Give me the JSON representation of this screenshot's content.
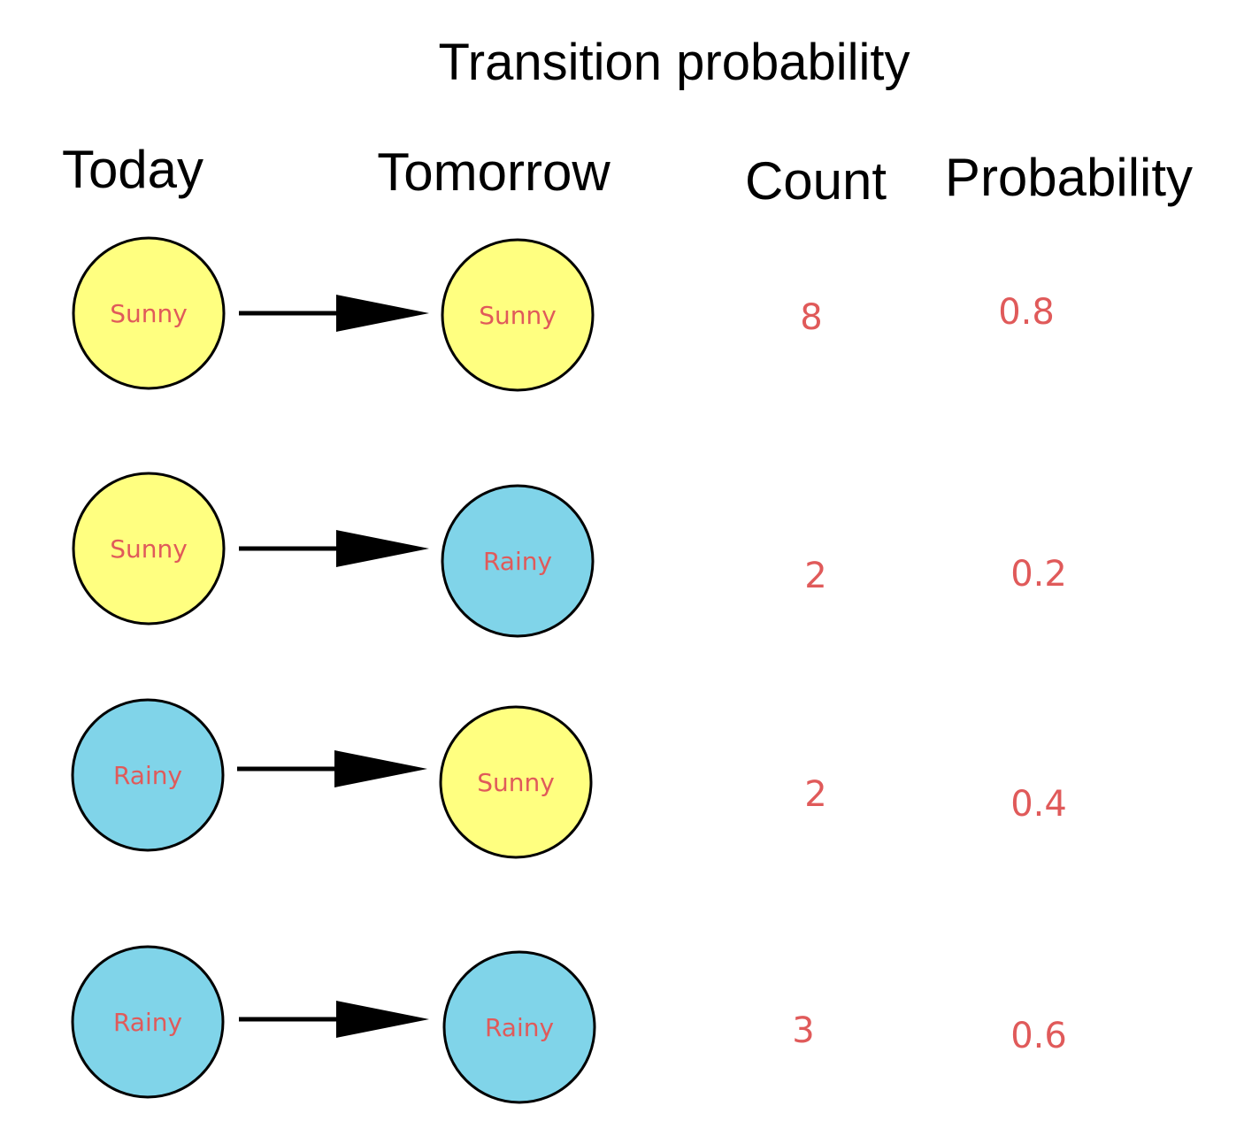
{
  "title": "Transition probability",
  "headers": {
    "today": "Today",
    "tomorrow": "Tomorrow",
    "count": "Count",
    "probability": "Probability"
  },
  "colors": {
    "sunny": "#ffff80",
    "rainy": "#80d4e9",
    "label": "#e05a5a",
    "outline": "#000000"
  },
  "transitions": [
    {
      "today": "Sunny",
      "tomorrow": "Sunny",
      "count": "8",
      "probability": "0.8"
    },
    {
      "today": "Sunny",
      "tomorrow": "Rainy",
      "count": "2",
      "probability": "0.2"
    },
    {
      "today": "Rainy",
      "tomorrow": "Sunny",
      "count": "2",
      "probability": "0.4"
    },
    {
      "today": "Rainy",
      "tomorrow": "Rainy",
      "count": "3",
      "probability": "0.6"
    }
  ]
}
